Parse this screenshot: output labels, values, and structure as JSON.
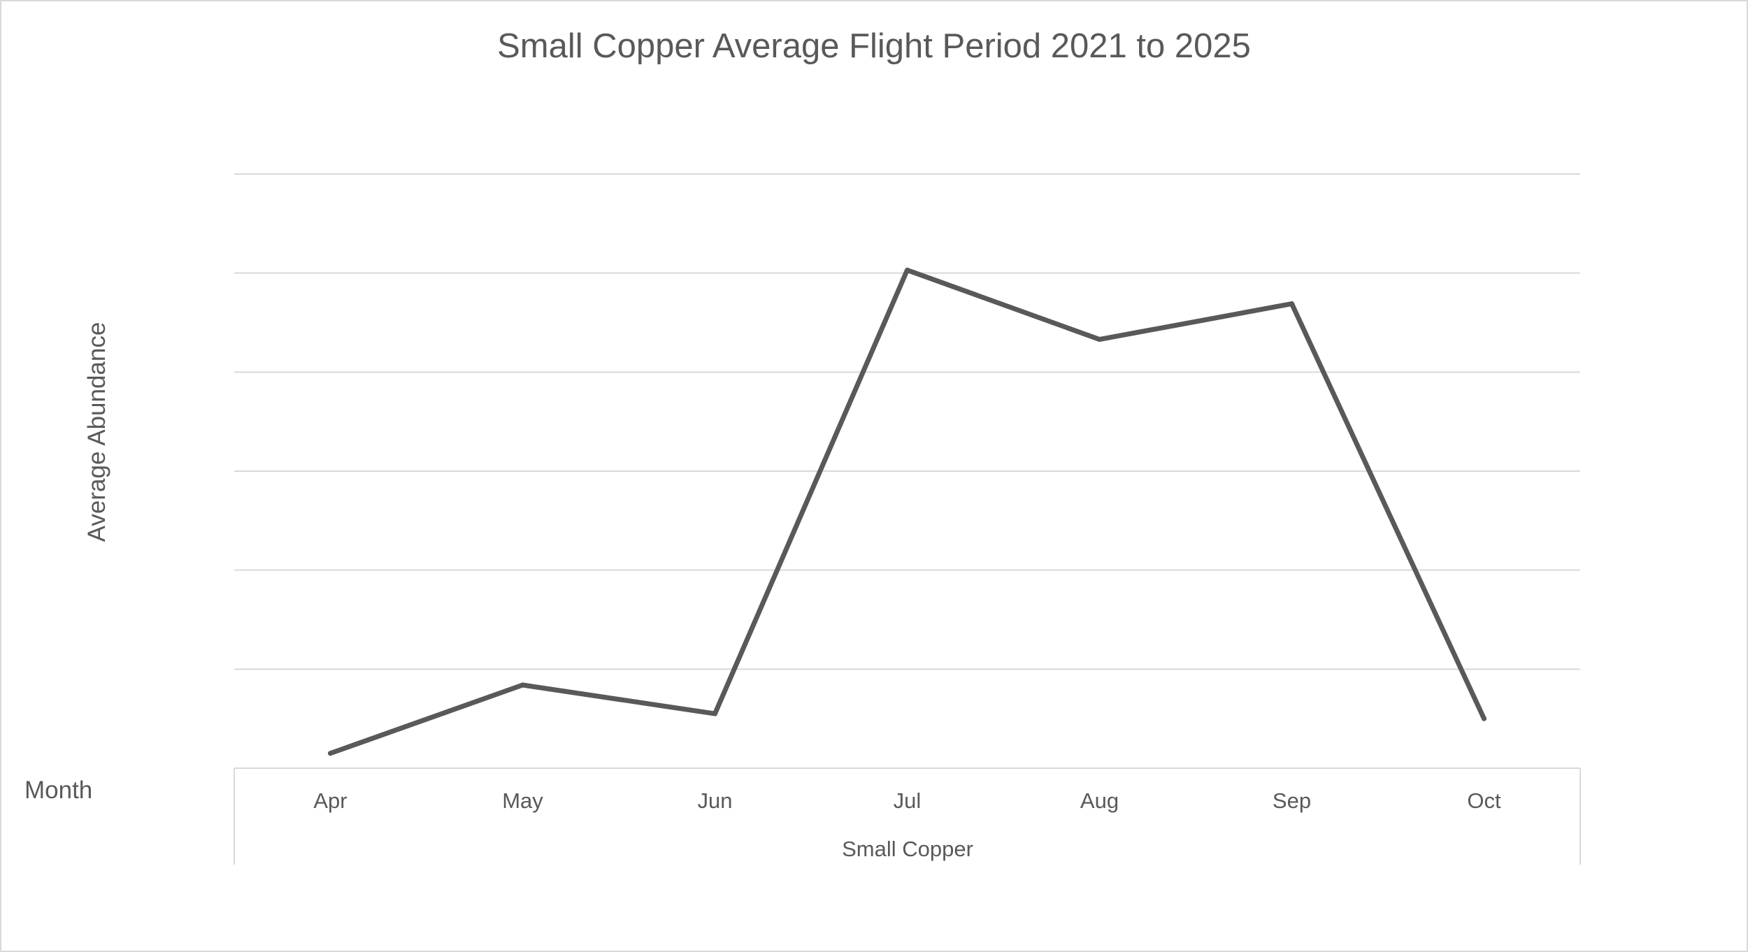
{
  "chart_data": {
    "type": "line",
    "title": "Small Copper Average Flight Period 2021 to 2025",
    "xlabel": "Small Copper",
    "ylabel": "Average Abundance",
    "row_field_label": "Month",
    "categories": [
      "Apr",
      "May",
      "Jun",
      "Jul",
      "Aug",
      "Sep",
      "Oct"
    ],
    "series": [
      {
        "name": "Small Copper",
        "values": [
          0.15,
          0.84,
          0.55,
          5.03,
          4.33,
          4.69,
          0.5
        ]
      }
    ],
    "ylim": [
      0,
      6
    ],
    "grid": true,
    "legend": "none",
    "colors": {
      "line": "#595959",
      "grid": "#d9d9d9",
      "text": "#595959",
      "frame": "#d9d9d9"
    }
  }
}
